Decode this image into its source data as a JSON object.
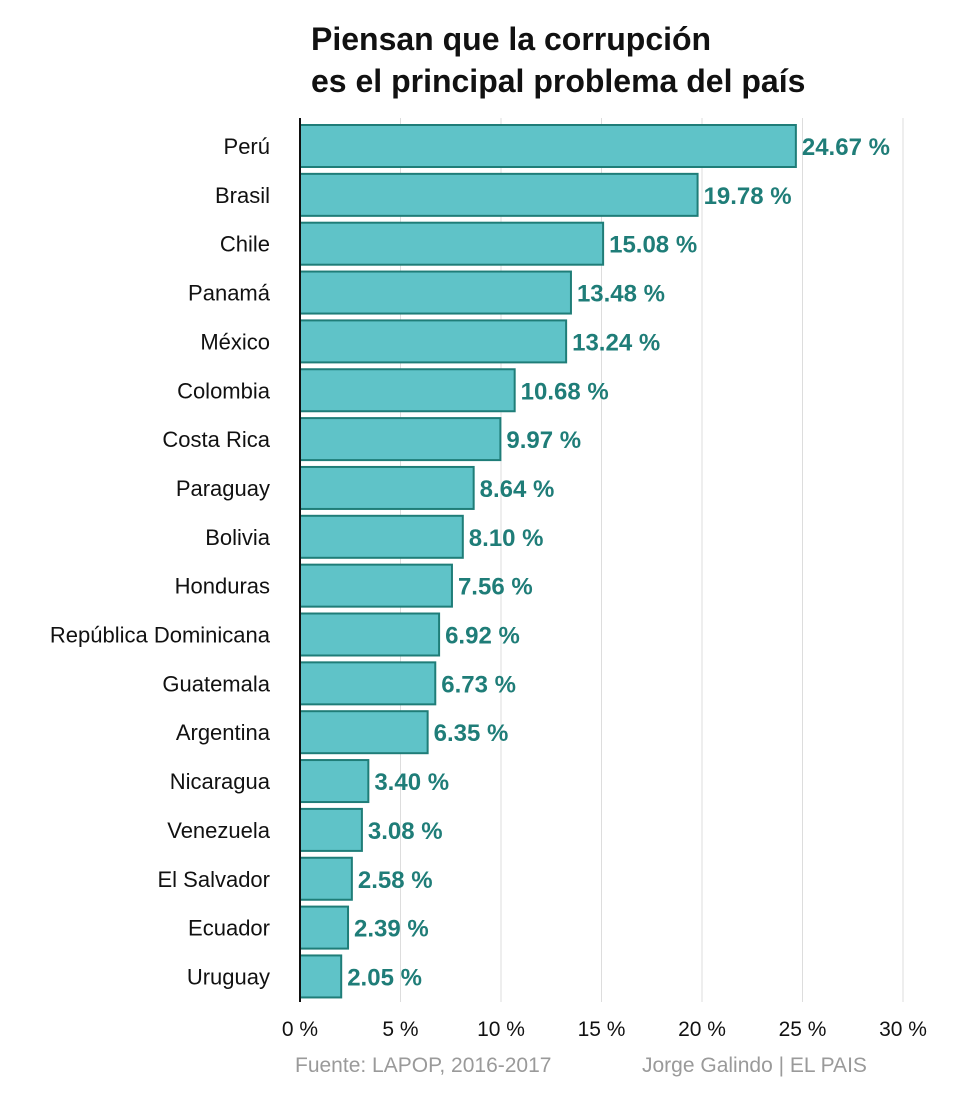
{
  "chart_data": {
    "type": "bar",
    "orientation": "horizontal",
    "title_lines": [
      "Piensan que la corrupción",
      "es el principal problema del país"
    ],
    "categories": [
      "Perú",
      "Brasil",
      "Chile",
      "Panamá",
      "México",
      "Colombia",
      "Costa Rica",
      "Paraguay",
      "Bolivia",
      "Honduras",
      "República Dominicana",
      "Guatemala",
      "Argentina",
      "Nicaragua",
      "Venezuela",
      "El Salvador",
      "Ecuador",
      "Uruguay"
    ],
    "values": [
      24.67,
      19.78,
      15.08,
      13.48,
      13.24,
      10.68,
      9.97,
      8.64,
      8.1,
      7.56,
      6.92,
      6.73,
      6.35,
      3.4,
      3.08,
      2.58,
      2.39,
      2.05
    ],
    "value_labels": [
      "24.67 %",
      "19.78 %",
      "15.08 %",
      "13.48 %",
      "13.24 %",
      "10.68 %",
      "9.97 %",
      "8.64 %",
      "8.10 %",
      "7.56 %",
      "6.92 %",
      "6.73 %",
      "6.35 %",
      "3.40 %",
      "3.08 %",
      "2.58 %",
      "2.39 %",
      "2.05 %"
    ],
    "x_ticks": [
      0,
      5,
      10,
      15,
      20,
      25,
      30
    ],
    "x_tick_labels": [
      "0 %",
      "5 %",
      "10 %",
      "15 %",
      "20 %",
      "25 %",
      "30 %"
    ],
    "xlim": [
      0,
      30
    ],
    "grid": true,
    "colors": {
      "bar_fill": "#5fc3c8",
      "bar_stroke": "#1f7d78",
      "label": "#1f7d78",
      "grid": "#dddddd",
      "axis": "#111111"
    }
  },
  "footer": {
    "source": "Fuente: LAPOP, 2016-2017",
    "credit": "Jorge Galindo | EL PAIS"
  }
}
